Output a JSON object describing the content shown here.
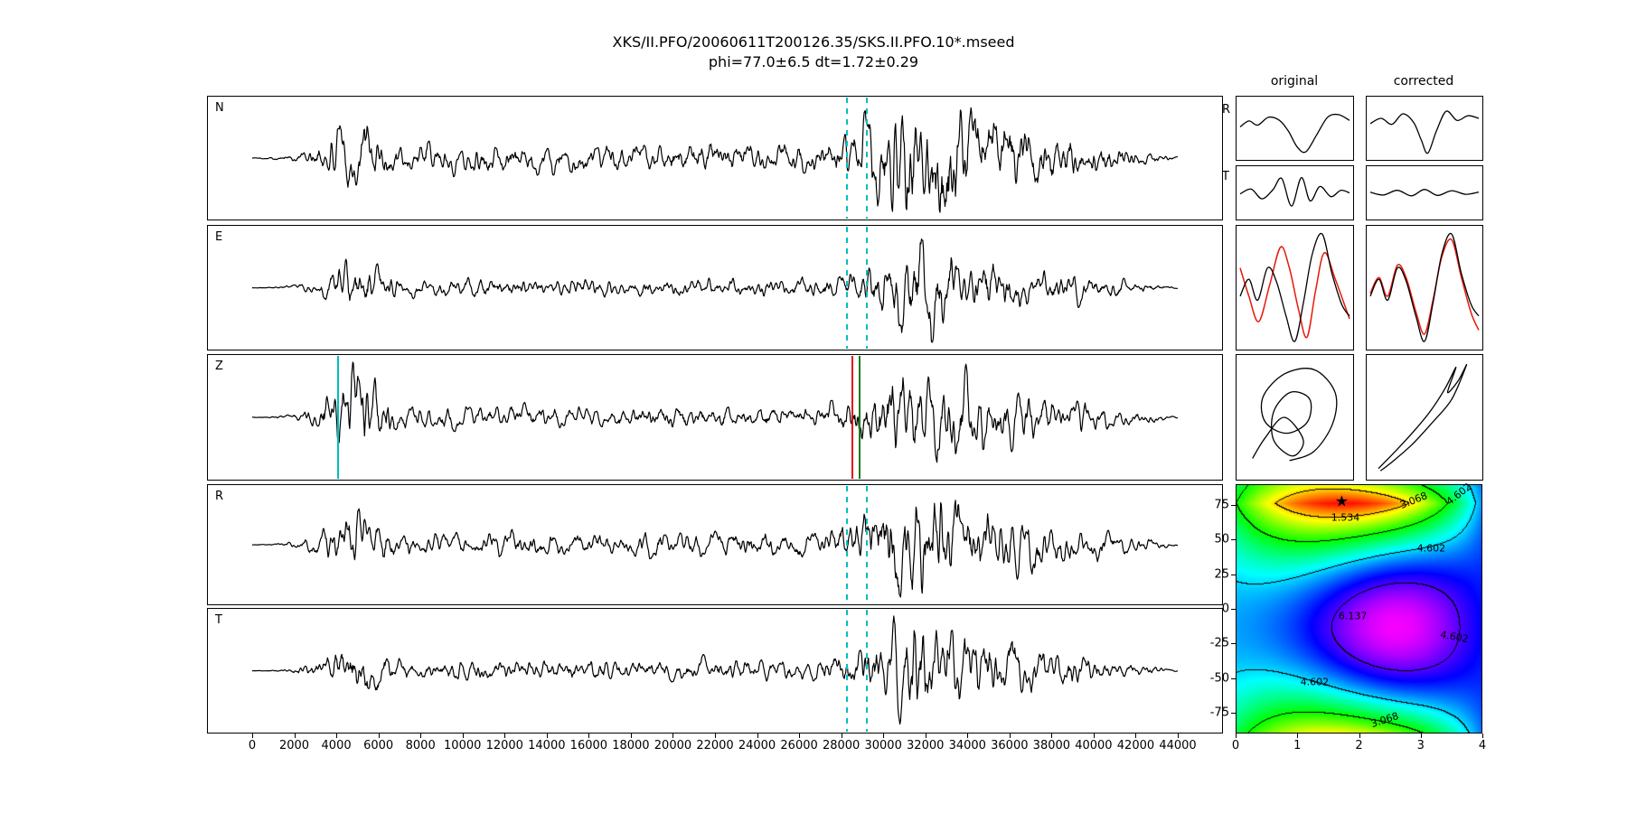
{
  "title": {
    "line1": "XKS/II.PFO/20060611T200126.35/SKS.II.PFO.10*.mseed",
    "line2": "phi=77.0±6.5 dt=1.72±0.29"
  },
  "colors": {
    "trace": "#000000",
    "cyan": "#00bebe",
    "red": "#e01010",
    "green": "#1a7a1a",
    "overlay_red": "#e8170b",
    "contour_line": "#000000"
  },
  "waveforms": {
    "x_ticks": [
      0,
      2000,
      4000,
      6000,
      8000,
      10000,
      12000,
      14000,
      16000,
      18000,
      20000,
      22000,
      24000,
      26000,
      28000,
      30000,
      32000,
      34000,
      36000,
      38000,
      40000,
      42000,
      44000
    ],
    "x_range": [
      0,
      44000
    ],
    "panels": [
      {
        "label": "N",
        "markers": [
          {
            "t": 28230,
            "color": "cyan",
            "dash": true
          },
          {
            "t": 29180,
            "color": "cyan",
            "dash": true
          }
        ]
      },
      {
        "label": "E",
        "markers": [
          {
            "t": 28230,
            "color": "cyan",
            "dash": true
          },
          {
            "t": 29180,
            "color": "cyan",
            "dash": true
          }
        ]
      },
      {
        "label": "Z",
        "markers": [
          {
            "t": 4050,
            "color": "cyan",
            "dash": false
          },
          {
            "t": 28490,
            "color": "red",
            "dash": false
          },
          {
            "t": 28830,
            "color": "green",
            "dash": false
          }
        ]
      },
      {
        "label": "R",
        "markers": [
          {
            "t": 28230,
            "color": "cyan",
            "dash": true
          },
          {
            "t": 29180,
            "color": "cyan",
            "dash": true
          }
        ]
      },
      {
        "label": "T",
        "markers": [
          {
            "t": 28230,
            "color": "cyan",
            "dash": true
          },
          {
            "t": 29180,
            "color": "cyan",
            "dash": true
          }
        ]
      }
    ]
  },
  "right_panels": {
    "headers": [
      "original",
      "corrected"
    ],
    "row_labels": [
      "R",
      "T"
    ]
  },
  "contour": {
    "x_ticks": [
      0,
      1,
      2,
      3,
      4
    ],
    "y_ticks": [
      75,
      50,
      25,
      0,
      -25,
      -50,
      -75
    ],
    "levels": [
      1.534,
      3.068,
      4.602,
      6.137
    ],
    "labels": [
      {
        "text": "4.602",
        "dt": 3.62,
        "phi": 83,
        "rot": -38
      },
      {
        "text": "3.068",
        "dt": 2.88,
        "phi": 78,
        "rot": -22
      },
      {
        "text": "1.534",
        "dt": 1.78,
        "phi": 66,
        "rot": 0
      },
      {
        "text": "4.602",
        "dt": 3.17,
        "phi": 44,
        "rot": 0
      },
      {
        "text": "6.137",
        "dt": 1.9,
        "phi": -5,
        "rot": 0
      },
      {
        "text": "4.602",
        "dt": 3.55,
        "phi": -20,
        "rot": 10
      },
      {
        "text": "4.602",
        "dt": 1.28,
        "phi": -53,
        "rot": 0
      },
      {
        "text": "3.068",
        "dt": 2.42,
        "phi": -80,
        "rot": -18
      }
    ],
    "star": {
      "dt": 1.72,
      "phi": 77.0
    }
  },
  "chart_data": [
    {
      "type": "line",
      "subtype": "seismogram-panels",
      "title": "XKS/II.PFO/20060611T200126.35/SKS.II.PFO.10*.mseed",
      "subtitle": "phi=77.0±6.5 dt=1.72±0.29",
      "panels": [
        "N",
        "E",
        "Z",
        "R",
        "T"
      ],
      "x_range": [
        0,
        44000
      ],
      "x_tick_step": 2000,
      "selection_window": [
        28230,
        29180
      ],
      "z_picks": {
        "cyan": 4050,
        "red": 28490,
        "green": 28830
      },
      "grid": false
    },
    {
      "type": "contour",
      "xlabel": "",
      "ylabel": "",
      "x_range": [
        0,
        4
      ],
      "x_ticks": [
        0,
        1,
        2,
        3,
        4
      ],
      "y_range": [
        -90,
        90
      ],
      "y_ticks": [
        75,
        50,
        25,
        0,
        -25,
        -50,
        -75
      ],
      "levels": [
        1.534,
        3.068,
        4.602,
        6.137
      ],
      "best_fit": {
        "phi": 77.0,
        "phi_err": 6.5,
        "dt": 1.72,
        "dt_err": 0.29
      },
      "colormap": "rainbow-reversed (red=min, violet=max)",
      "marker": "star at (dt=1.72, phi=77)"
    }
  ]
}
